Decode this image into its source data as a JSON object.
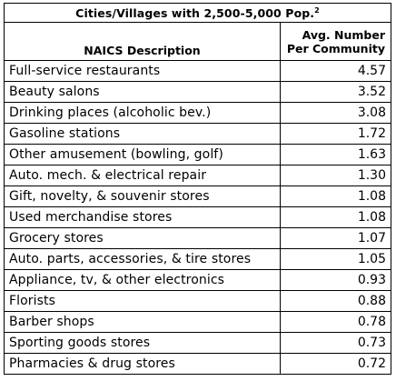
{
  "table": {
    "title": "Cities/Villages with 2,500-5,000 Pop.",
    "title_footnote": "2",
    "headers": {
      "description": "NAICS Description",
      "avg_line1": "Avg. Number",
      "avg_line2": "Per Community"
    },
    "rows": [
      {
        "name": "Full-service restaurants",
        "value": "4.57"
      },
      {
        "name": "Beauty salons",
        "value": "3.52"
      },
      {
        "name": "Drinking places (alcoholic bev.)",
        "value": "3.08"
      },
      {
        "name": "Gasoline stations",
        "value": "1.72"
      },
      {
        "name": "Other amusement (bowling, golf)",
        "value": "1.63"
      },
      {
        "name": "Auto. mech. & electrical repair",
        "value": "1.30"
      },
      {
        "name": "Gift, novelty, & souvenir stores",
        "value": "1.08"
      },
      {
        "name": "Used merchandise stores",
        "value": "1.08"
      },
      {
        "name": "Grocery stores",
        "value": "1.07"
      },
      {
        "name": "Auto. parts, accessories, & tire stores",
        "value": "1.05"
      },
      {
        "name": "Appliance, tv, & other electronics",
        "value": "0.93"
      },
      {
        "name": "Florists",
        "value": "0.88"
      },
      {
        "name": "Barber shops",
        "value": "0.78"
      },
      {
        "name": "Sporting goods stores",
        "value": "0.73"
      },
      {
        "name": "Pharmacies & drug stores",
        "value": "0.72"
      }
    ]
  }
}
